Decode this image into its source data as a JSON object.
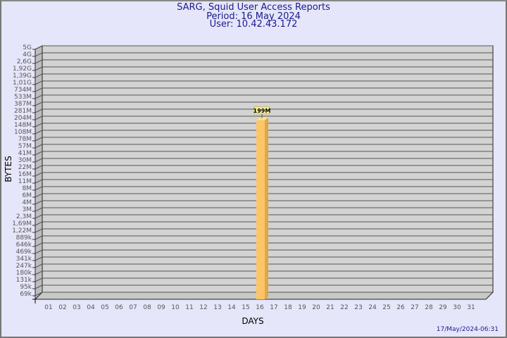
{
  "chart_data": {
    "type": "bar",
    "title": "SARG, Squid User Access Reports",
    "subtitle": [
      "Period: 16 May 2024",
      "User: 10.42.43.172"
    ],
    "xlabel": "DAYS",
    "ylabel": "BYTES",
    "y_scale": "log",
    "y_tick_labels": [
      "5G",
      "4G",
      "2,6G",
      "1,92G",
      "1,39G",
      "1,01G",
      "734M",
      "533M",
      "387M",
      "281M",
      "204M",
      "148M",
      "108M",
      "78M",
      "57M",
      "41M",
      "30M",
      "22M",
      "16M",
      "11M",
      "8M",
      "6M",
      "4M",
      "3M",
      "2,3M",
      "1,69M",
      "1,22M",
      "889k",
      "646k",
      "469k",
      "341k",
      "247k",
      "180k",
      "131k",
      "95k",
      "69k"
    ],
    "categories": [
      "01",
      "02",
      "03",
      "04",
      "05",
      "06",
      "07",
      "08",
      "09",
      "10",
      "11",
      "12",
      "13",
      "14",
      "15",
      "16",
      "17",
      "18",
      "19",
      "20",
      "21",
      "22",
      "23",
      "24",
      "25",
      "26",
      "27",
      "28",
      "29",
      "30",
      "31"
    ],
    "bars": [
      {
        "category": "16",
        "value": 199000000,
        "label": "199M"
      }
    ],
    "grid": true,
    "colors": {
      "background": "#e6e6fa",
      "plot": "#d3d3d3",
      "bar": "#fcc666",
      "text": "#1a1a8c"
    }
  },
  "footer": {
    "timestamp": "17/May/2024-06:31"
  }
}
